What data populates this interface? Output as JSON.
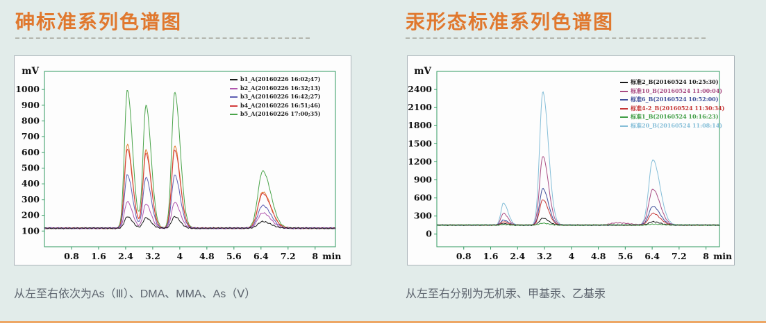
{
  "app": {
    "background_color": "#e2ecea",
    "title_color": "#e0782e",
    "accent_bar_color": "#eda766",
    "axis_color": "#2e9960"
  },
  "panels": [
    {
      "title": "砷标准系列色谱图",
      "caption": "从左至右依次为As（Ⅲ）、DMA、MMA、As（Ⅴ）"
    },
    {
      "title": "汞形态标准系列色谱图",
      "caption": "从左至右分别为无机汞、甲基汞、乙基汞"
    }
  ],
  "chart_data": [
    {
      "type": "line",
      "title": "砷标准系列色谱图",
      "ylabel": "mV",
      "x_unit": "min",
      "xlim": [
        0,
        8.6
      ],
      "ylim": [
        0,
        1115
      ],
      "x_ticks": [
        0.8,
        1.6,
        2.4,
        3.2,
        4,
        4.8,
        5.6,
        6.4,
        7.2,
        8
      ],
      "y_ticks": [
        100,
        200,
        300,
        400,
        500,
        600,
        700,
        800,
        900,
        1000
      ],
      "grid": false,
      "legend_position": "top-right",
      "legend_text_colored": false,
      "baseline_mv": 118,
      "noise_mv": 5,
      "peaks": {
        "times_min": [
          2.45,
          3.0,
          3.85,
          6.45
        ],
        "labels": [
          "As(Ⅲ)",
          "DMA",
          "MMA",
          "As(Ⅴ)"
        ],
        "sigma_left_min": [
          0.085,
          0.085,
          0.09,
          0.14
        ],
        "sigma_right_min": [
          0.15,
          0.15,
          0.16,
          0.24
        ]
      },
      "series": [
        {
          "name": "b1_A(20160226 16:02;47)",
          "color": "#1a1a1a",
          "apex_mv": [
            192,
            184,
            191,
            161
          ]
        },
        {
          "name": "b2_A(20160226 16:32;13)",
          "color": "#b056ae",
          "apex_mv": [
            287,
            272,
            282,
            216
          ]
        },
        {
          "name": "b3_A(20160226 16:42;27)",
          "color": "#5d5db2",
          "apex_mv": [
            456,
            441,
            455,
            262
          ]
        },
        {
          "name": "b4_A(20160226 16:51;46)",
          "color": "#d33b3b",
          "apex_mv": [
            621,
            593,
            616,
            338
          ]
        },
        {
          "name": "",
          "color": "#e27a2b",
          "apex_mv": [
            651,
            617,
            642,
            349
          ],
          "in_legend": false
        },
        {
          "name": "b5_A(20160226 17:00;35)",
          "color": "#4aa44a",
          "apex_mv": [
            996,
            899,
            981,
            482
          ]
        }
      ]
    },
    {
      "type": "line",
      "title": "汞形态标准系列色谱图",
      "ylabel": "mV",
      "x_unit": "min",
      "xlim": [
        0,
        8.4
      ],
      "ylim": [
        -210,
        2700
      ],
      "x_ticks": [
        0.8,
        1.6,
        2.4,
        3.2,
        4,
        4.8,
        5.6,
        6.4,
        7.2,
        8
      ],
      "y_ticks": [
        0,
        300,
        600,
        900,
        1200,
        1500,
        1800,
        2100,
        2400
      ],
      "grid": false,
      "legend_position": "top-right",
      "legend_text_colored": true,
      "baseline_mv": 150,
      "noise_mv": 9,
      "peaks": {
        "times_min": [
          1.98,
          3.15,
          6.42
        ],
        "labels": [
          "无机汞",
          "甲基汞",
          "乙基汞"
        ],
        "sigma_left_min": [
          0.075,
          0.095,
          0.12
        ],
        "sigma_right_min": [
          0.135,
          0.165,
          0.21
        ]
      },
      "series": [
        {
          "name": "标准2_B(20160524  10:25:30)",
          "color": "#1a1a1a",
          "apex_mv": [
            173,
            264,
            207
          ]
        },
        {
          "name": "标准10_B(20160524  11:00:04)",
          "color": "#a84b82",
          "apex_mv": [
            344,
            1291,
            744
          ],
          "extra_bumps": [
            {
              "t": 5.35,
              "apex_mv": 187,
              "sigma_left_min": 0.2,
              "sigma_right_min": 0.35
            }
          ]
        },
        {
          "name": "标准6_B(20160524  10:52:00)",
          "color": "#3e4e9a",
          "apex_mv": [
            231,
            756,
            459
          ]
        },
        {
          "name": "标准4-2_B(20160524  11:30:34)",
          "color": "#c53535",
          "apex_mv": [
            206,
            571,
            344
          ]
        },
        {
          "name": "标准1_B(20160524  10:16:23)",
          "color": "#3f9d44",
          "apex_mv": [
            159,
            180,
            165
          ]
        },
        {
          "name": "标准20_B(20160524  11:08:14)",
          "color": "#85bed8",
          "apex_mv": [
            514,
            2356,
            1234
          ]
        }
      ]
    }
  ]
}
